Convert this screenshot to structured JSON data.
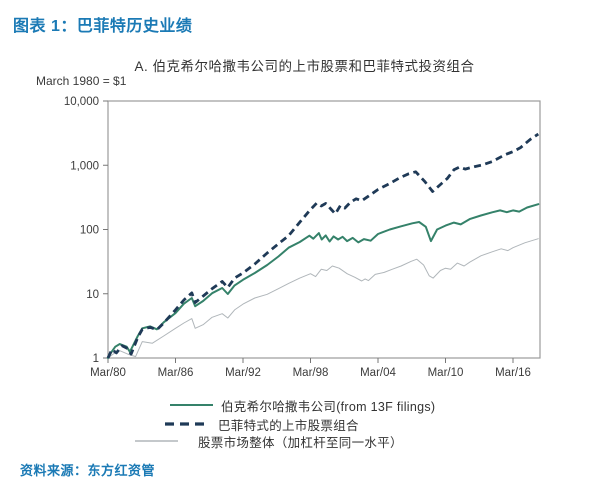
{
  "page": {
    "title": "图表 1：巴菲特历史业绩",
    "source": "资料来源：东方红资管"
  },
  "chart": {
    "panel_title": "A. 伯克希尔哈撒韦公司的上市股票和巴菲特式投资组合",
    "unit_note": "March 1980 = $1"
  },
  "colors": {
    "heading_blue": "#1b7ab5",
    "axis_text": "#3c3c3c",
    "plot_border": "#9b9b9b",
    "berkshire_green": "#35826a",
    "buffett_navy": "#1f3a57",
    "market_gray": "#b0b6ba"
  },
  "legend": {
    "items": [
      {
        "label": "伯克希尔哈撒韦公司(from 13F filings)",
        "series_index": 0
      },
      {
        "label": "巴菲特式的上市股票组合",
        "series_index": 1
      },
      {
        "label": "股票市场整体（加杠杆至同一水平）",
        "series_index": 2
      }
    ]
  },
  "chart_data": {
    "type": "line",
    "title": "A. 伯克希尔哈撒韦公司的上市股票和巴菲特式投资组合",
    "xlabel": "",
    "ylabel": "March 1980 = $1",
    "y_scale": "log",
    "ylim": [
      1,
      10000
    ],
    "xlim": [
      1980.25,
      2018.65
    ],
    "grid": false,
    "legend_position": "bottom",
    "y_axis": {
      "ticks": [
        {
          "value": 10000,
          "label": "10,000"
        },
        {
          "value": 1000,
          "label": "1,000"
        },
        {
          "value": 100,
          "label": "100"
        },
        {
          "value": 10,
          "label": "10"
        },
        {
          "value": 1,
          "label": "1"
        }
      ]
    },
    "x_axis": {
      "ticks": [
        {
          "year": 1980.25,
          "label": "Mar/80"
        },
        {
          "year": 1986.25,
          "label": "Mar/86"
        },
        {
          "year": 1992.25,
          "label": "Mar/92"
        },
        {
          "year": 1998.25,
          "label": "Mar/98"
        },
        {
          "year": 2004.25,
          "label": "Mar/04"
        },
        {
          "year": 2010.25,
          "label": "Mar/10"
        },
        {
          "year": 2016.25,
          "label": "Mar/16"
        }
      ]
    },
    "series": [
      {
        "name": "伯克希尔哈撒韦公司(from 13F filings)",
        "color": "#35826a",
        "width": 2,
        "dash": null,
        "z": 2,
        "points": [
          [
            1980.25,
            1
          ],
          [
            1980.5,
            1.2
          ],
          [
            1980.9,
            1.5
          ],
          [
            1981.3,
            1.65
          ],
          [
            1981.9,
            1.5
          ],
          [
            1982.2,
            1.25
          ],
          [
            1982.9,
            2.2
          ],
          [
            1983.3,
            2.9
          ],
          [
            1984.0,
            3.1
          ],
          [
            1984.6,
            2.8
          ],
          [
            1985.2,
            3.6
          ],
          [
            1986.25,
            5.0
          ],
          [
            1987.0,
            7.0
          ],
          [
            1987.7,
            8.6
          ],
          [
            1988.0,
            6.4
          ],
          [
            1988.7,
            7.7
          ],
          [
            1989.5,
            10.2
          ],
          [
            1990.4,
            12.3
          ],
          [
            1990.9,
            9.9
          ],
          [
            1991.5,
            13.5
          ],
          [
            1992.25,
            16.5
          ],
          [
            1993.3,
            21
          ],
          [
            1994.4,
            28
          ],
          [
            1995.4,
            38
          ],
          [
            1996.3,
            52
          ],
          [
            1997.3,
            64
          ],
          [
            1998.15,
            80
          ],
          [
            1998.5,
            72
          ],
          [
            1999.0,
            88
          ],
          [
            1999.25,
            70
          ],
          [
            1999.6,
            81
          ],
          [
            1999.95,
            65
          ],
          [
            2000.3,
            78
          ],
          [
            2000.7,
            70
          ],
          [
            2001.1,
            77
          ],
          [
            2001.5,
            66
          ],
          [
            2002.0,
            74
          ],
          [
            2002.5,
            63
          ],
          [
            2003.0,
            71
          ],
          [
            2003.6,
            67
          ],
          [
            2004.25,
            85
          ],
          [
            2005.3,
            100
          ],
          [
            2006.3,
            112
          ],
          [
            2007.3,
            125
          ],
          [
            2007.9,
            131
          ],
          [
            2008.5,
            110
          ],
          [
            2008.95,
            66
          ],
          [
            2009.5,
            100
          ],
          [
            2010.25,
            115
          ],
          [
            2011.0,
            128
          ],
          [
            2011.6,
            120
          ],
          [
            2012.4,
            145
          ],
          [
            2013.4,
            165
          ],
          [
            2014.4,
            185
          ],
          [
            2015.1,
            198
          ],
          [
            2015.7,
            186
          ],
          [
            2016.25,
            198
          ],
          [
            2016.8,
            190
          ],
          [
            2017.5,
            220
          ],
          [
            2018.5,
            248
          ]
        ]
      },
      {
        "name": "巴菲特式的上市股票组合",
        "color": "#1f3a57",
        "width": 2.8,
        "dash": "7,4.5",
        "z": 3,
        "points": [
          [
            1980.25,
            1
          ],
          [
            1980.6,
            1.35
          ],
          [
            1981.0,
            1.2
          ],
          [
            1981.5,
            1.55
          ],
          [
            1982.0,
            1.4
          ],
          [
            1982.3,
            1.15
          ],
          [
            1982.9,
            2.1
          ],
          [
            1983.3,
            2.8
          ],
          [
            1984.0,
            3.0
          ],
          [
            1984.6,
            2.75
          ],
          [
            1985.2,
            3.5
          ],
          [
            1986.25,
            5.6
          ],
          [
            1987.0,
            8.0
          ],
          [
            1987.7,
            10.3
          ],
          [
            1988.0,
            7.3
          ],
          [
            1988.7,
            9.2
          ],
          [
            1989.5,
            12
          ],
          [
            1990.4,
            15.5
          ],
          [
            1990.9,
            12.5
          ],
          [
            1991.5,
            17.5
          ],
          [
            1992.25,
            21
          ],
          [
            1993.3,
            29
          ],
          [
            1994.4,
            43
          ],
          [
            1995.4,
            60
          ],
          [
            1996.3,
            80
          ],
          [
            1997.3,
            130
          ],
          [
            1998.2,
            200
          ],
          [
            1998.8,
            258
          ],
          [
            1999.2,
            232
          ],
          [
            1999.6,
            255
          ],
          [
            2000.1,
            205
          ],
          [
            2000.45,
            175
          ],
          [
            2000.9,
            235
          ],
          [
            2001.3,
            215
          ],
          [
            2001.8,
            265
          ],
          [
            2002.3,
            300
          ],
          [
            2002.8,
            280
          ],
          [
            2003.4,
            330
          ],
          [
            2004.25,
            420
          ],
          [
            2005.3,
            520
          ],
          [
            2006.2,
            640
          ],
          [
            2007.0,
            740
          ],
          [
            2007.6,
            790
          ],
          [
            2008.4,
            560
          ],
          [
            2009.1,
            390
          ],
          [
            2009.9,
            520
          ],
          [
            2010.4,
            620
          ],
          [
            2011.0,
            850
          ],
          [
            2011.5,
            940
          ],
          [
            2012.0,
            870
          ],
          [
            2012.8,
            950
          ],
          [
            2013.5,
            1010
          ],
          [
            2014.4,
            1140
          ],
          [
            2015.5,
            1450
          ],
          [
            2016.25,
            1630
          ],
          [
            2016.9,
            1870
          ],
          [
            2017.8,
            2530
          ],
          [
            2018.5,
            3050
          ]
        ]
      },
      {
        "name": "股票市场整体（加杠杆至同一水平）",
        "color": "#b0b6ba",
        "width": 1,
        "dash": null,
        "z": 1,
        "points": [
          [
            1980.25,
            1
          ],
          [
            1980.7,
            1.15
          ],
          [
            1981.3,
            1.3
          ],
          [
            1982.0,
            1.15
          ],
          [
            1982.7,
            1.05
          ],
          [
            1983.3,
            1.8
          ],
          [
            1984.2,
            1.7
          ],
          [
            1985.2,
            2.2
          ],
          [
            1986.25,
            2.9
          ],
          [
            1987.0,
            3.5
          ],
          [
            1987.7,
            4.1
          ],
          [
            1988.0,
            2.9
          ],
          [
            1988.7,
            3.3
          ],
          [
            1989.5,
            4.3
          ],
          [
            1990.4,
            4.9
          ],
          [
            1990.9,
            4.2
          ],
          [
            1991.5,
            5.6
          ],
          [
            1992.25,
            6.9
          ],
          [
            1993.3,
            8.6
          ],
          [
            1994.4,
            9.8
          ],
          [
            1995.4,
            12
          ],
          [
            1996.3,
            14.5
          ],
          [
            1997.3,
            17.5
          ],
          [
            1998.25,
            20.5
          ],
          [
            1998.7,
            18.5
          ],
          [
            1999.2,
            24
          ],
          [
            1999.7,
            23
          ],
          [
            2000.2,
            27
          ],
          [
            2000.8,
            25
          ],
          [
            2001.5,
            20.5
          ],
          [
            2002.2,
            18
          ],
          [
            2002.8,
            15.8
          ],
          [
            2003.1,
            17
          ],
          [
            2003.4,
            16
          ],
          [
            2004.0,
            20
          ],
          [
            2004.8,
            21.5
          ],
          [
            2005.5,
            24
          ],
          [
            2006.3,
            27
          ],
          [
            2007.2,
            32
          ],
          [
            2007.7,
            34.5
          ],
          [
            2008.3,
            28
          ],
          [
            2008.8,
            19
          ],
          [
            2009.15,
            17.5
          ],
          [
            2009.8,
            23
          ],
          [
            2010.25,
            25
          ],
          [
            2010.7,
            24
          ],
          [
            2011.3,
            30
          ],
          [
            2011.9,
            27
          ],
          [
            2012.4,
            31
          ],
          [
            2013.4,
            39
          ],
          [
            2014.4,
            45
          ],
          [
            2015.2,
            50
          ],
          [
            2015.8,
            47
          ],
          [
            2016.25,
            52
          ],
          [
            2017.3,
            62
          ],
          [
            2018.5,
            72
          ]
        ]
      }
    ]
  }
}
